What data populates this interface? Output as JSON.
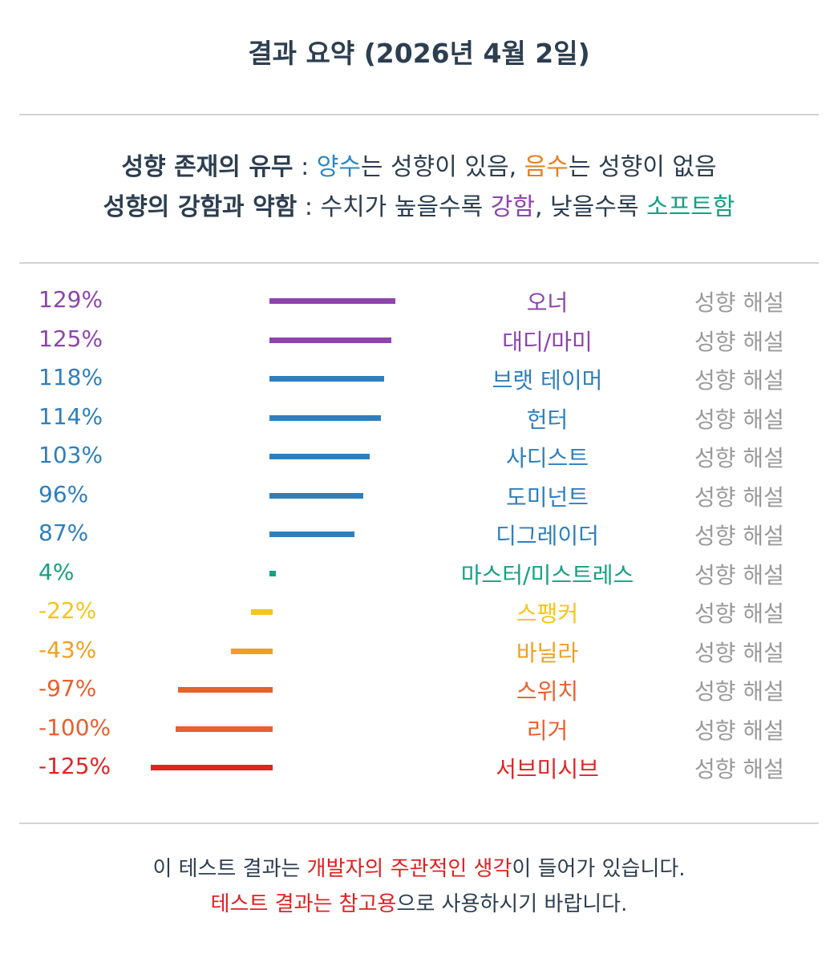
{
  "header": {
    "title": "결과 요약 (2026년 4월 2일)"
  },
  "legend": {
    "line1": {
      "label": "성향 존재의 유무",
      "sep": " : ",
      "positive_word": "양수",
      "positive_rest": "는 성향이 있음, ",
      "negative_word": "음수",
      "negative_rest": "는 성향이 없음"
    },
    "line2": {
      "label": "성향의 강함과 약함",
      "sep": " : ",
      "text_a": "수치가 높을수록 ",
      "strong_word": "강함",
      "text_b": ", 낮을수록 ",
      "soft_word": "소프트함"
    },
    "colors": {
      "blue": "#2e86c1",
      "orange": "#e67e22",
      "purple": "#8e44ad",
      "green": "#16a085"
    }
  },
  "results": [
    {
      "percent_label": "129%",
      "value": 129,
      "name": "오너",
      "link": "성향 해설",
      "color": "#8e44ad"
    },
    {
      "percent_label": "125%",
      "value": 125,
      "name": "대디/마미",
      "link": "성향 해설",
      "color": "#8e44ad"
    },
    {
      "percent_label": "118%",
      "value": 118,
      "name": "브랫 테이머",
      "link": "성향 해설",
      "color": "#2e7fbc"
    },
    {
      "percent_label": "114%",
      "value": 114,
      "name": "헌터",
      "link": "성향 해설",
      "color": "#2e7fbc"
    },
    {
      "percent_label": "103%",
      "value": 103,
      "name": "사디스트",
      "link": "성향 해설",
      "color": "#2e7fbc"
    },
    {
      "percent_label": "96%",
      "value": 96,
      "name": "도미넌트",
      "link": "성향 해설",
      "color": "#2e7fbc"
    },
    {
      "percent_label": "87%",
      "value": 87,
      "name": "디그레이더",
      "link": "성향 해설",
      "color": "#2e7fbc"
    },
    {
      "percent_label": "4%",
      "value": 4,
      "name": "마스터/미스트레스",
      "link": "성향 해설",
      "color": "#16a085"
    },
    {
      "percent_label": "-22%",
      "value": -22,
      "name": "스팽커",
      "link": "성향 해설",
      "color": "#f5c518"
    },
    {
      "percent_label": "-43%",
      "value": -43,
      "name": "바닐라",
      "link": "성향 해설",
      "color": "#f0a020"
    },
    {
      "percent_label": "-97%",
      "value": -97,
      "name": "스위치",
      "link": "성향 해설",
      "color": "#e8602c"
    },
    {
      "percent_label": "-100%",
      "value": -100,
      "name": "리거",
      "link": "성향 해설",
      "color": "#e8602c"
    },
    {
      "percent_label": "-125%",
      "value": -125,
      "name": "서브미시브",
      "link": "성향 해설",
      "color": "#e02424"
    }
  ],
  "footer": {
    "line1_a": "이 테스트 결과는 ",
    "line1_highlight": "개발자의 주관적인 생각",
    "line1_b": "이 들어가 있습니다.",
    "line2_highlight": "테스트 결과는 참고용",
    "line2_b": "으로 사용하시기 바랍니다.",
    "highlight_color": "#e02020"
  }
}
